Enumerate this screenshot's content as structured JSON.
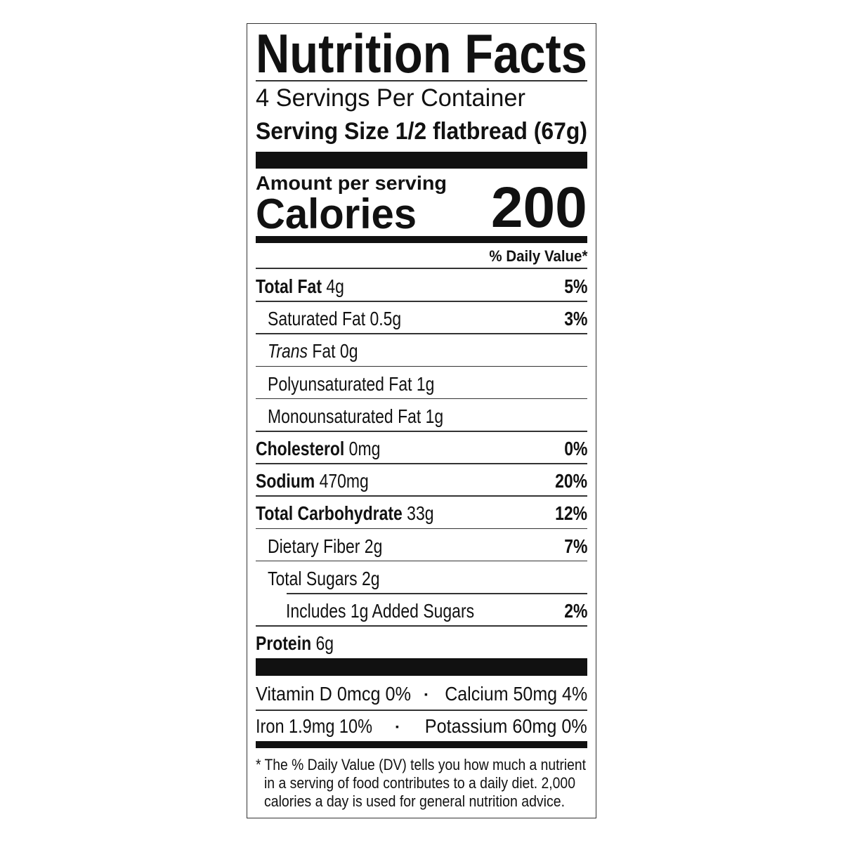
{
  "title": "Nutrition Facts",
  "servings_per_container": "4 Servings Per Container",
  "serving_size_label": "Serving Size",
  "serving_size_value": "1/2 flatbread (67g)",
  "amount_per_serving": "Amount per serving",
  "calories_label": "Calories",
  "calories_value": "200",
  "daily_value_header": "% Daily Value*",
  "nutrients": [
    {
      "name": "Total Fat",
      "amount": "4g",
      "dv": "5%",
      "bold": true,
      "indent": 0
    },
    {
      "name": "Saturated Fat",
      "amount": "0.5g",
      "dv": "3%",
      "bold": false,
      "indent": 1
    },
    {
      "name_italic": "Trans",
      "name": "Fat",
      "amount": "0g",
      "dv": "",
      "bold": false,
      "indent": 1
    },
    {
      "name": "Polyunsaturated Fat",
      "amount": "1g",
      "dv": "",
      "bold": false,
      "indent": 1
    },
    {
      "name": "Monounsaturated Fat",
      "amount": "1g",
      "dv": "",
      "bold": false,
      "indent": 1
    },
    {
      "name": "Cholesterol",
      "amount": "0mg",
      "dv": "0%",
      "bold": true,
      "indent": 0
    },
    {
      "name": "Sodium",
      "amount": "470mg",
      "dv": "20%",
      "bold": true,
      "indent": 0
    },
    {
      "name": "Total Carbohydrate",
      "amount": "33g",
      "dv": "12%",
      "bold": true,
      "indent": 0
    },
    {
      "name": "Dietary Fiber",
      "amount": "2g",
      "dv": "7%",
      "bold": false,
      "indent": 1
    },
    {
      "name": "Total Sugars",
      "amount": "2g",
      "dv": "",
      "bold": false,
      "indent": 1
    },
    {
      "name": "Includes 1g Added Sugars",
      "amount": "",
      "dv": "2%",
      "bold": false,
      "indent": 2
    },
    {
      "name": "Protein",
      "amount": "6g",
      "dv": "",
      "bold": true,
      "indent": 0
    }
  ],
  "micros": [
    {
      "left": "Vitamin D 0mcg 0%",
      "right": "Calcium 50mg 4%"
    },
    {
      "left": "Iron 1.9mg 10%",
      "right": "Potassium 60mg 0%"
    }
  ],
  "bullet": "▪",
  "footnote": [
    "* The % Daily Value (DV) tells you how much a nutrient",
    "in a serving of food contributes to a daily diet. 2,000",
    "calories a day is used for general nutrition advice."
  ]
}
